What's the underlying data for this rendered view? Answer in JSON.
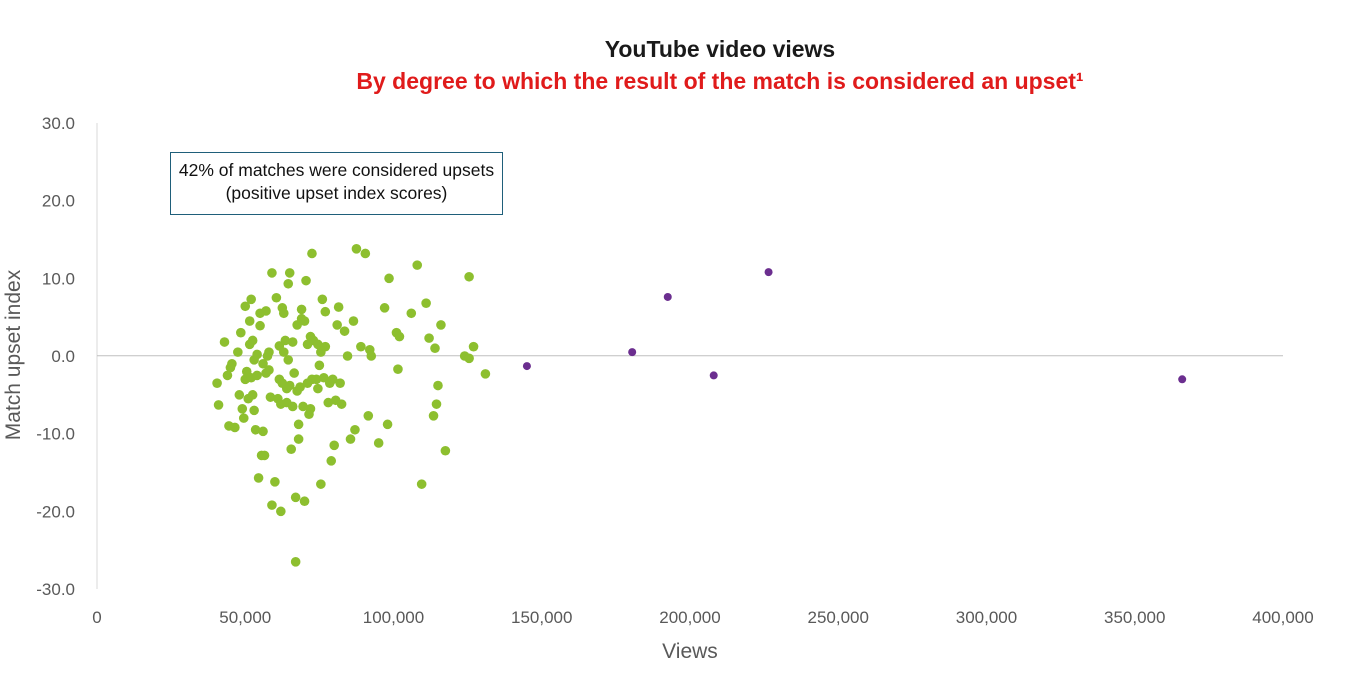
{
  "chart_data": {
    "type": "scatter",
    "title": "YouTube video views",
    "subtitle": "By degree to which the result of the match is considered an upset¹",
    "xlabel": "Views",
    "ylabel": "Match upset index",
    "xlim": [
      0,
      400000
    ],
    "ylim": [
      -30,
      30
    ],
    "x_ticks": [
      "0",
      "50,000",
      "100,000",
      "150,000",
      "200,000",
      "250,000",
      "300,000",
      "350,000",
      "400,000"
    ],
    "y_ticks": [
      "30.0",
      "20.0",
      "10.0",
      "0.0",
      "-10.0",
      "-20.0",
      "-30.0"
    ],
    "grid": false,
    "zero_line": true,
    "annotation": "42% of matches were considered upsets (positive upset index scores)",
    "colors": {
      "main": "#8dbf2f",
      "outlier": "#6b2e8f",
      "subtitle": "#e01b1b",
      "title": "#1a1a1a",
      "axis": "#595959"
    },
    "series": [
      {
        "color": "#8dbf2f",
        "points": [
          [
            40500,
            -3.5
          ],
          [
            41000,
            -6.3
          ],
          [
            43000,
            1.8
          ],
          [
            44000,
            -2.5
          ],
          [
            44500,
            -9
          ],
          [
            45000,
            -1.5
          ],
          [
            45500,
            -1
          ],
          [
            46500,
            -9.2
          ],
          [
            47500,
            0.5
          ],
          [
            48000,
            -5
          ],
          [
            48500,
            3
          ],
          [
            49000,
            -6.8
          ],
          [
            49500,
            -8
          ],
          [
            50000,
            6.4
          ],
          [
            50000,
            -3
          ],
          [
            50500,
            -2
          ],
          [
            51000,
            -5.5
          ],
          [
            51500,
            4.5
          ],
          [
            51500,
            1.5
          ],
          [
            52000,
            7.3
          ],
          [
            52000,
            -2.8
          ],
          [
            52500,
            -5
          ],
          [
            52500,
            2
          ],
          [
            53000,
            -7
          ],
          [
            53000,
            -0.5
          ],
          [
            53500,
            -9.5
          ],
          [
            54000,
            0.2
          ],
          [
            54000,
            -2.5
          ],
          [
            54500,
            -15.7
          ],
          [
            55000,
            5.5
          ],
          [
            55000,
            3.9
          ],
          [
            55500,
            -12.8
          ],
          [
            56000,
            -9.7
          ],
          [
            56000,
            -1
          ],
          [
            56500,
            -12.8
          ],
          [
            57000,
            5.8
          ],
          [
            57000,
            -2.2
          ],
          [
            57500,
            0
          ],
          [
            58000,
            0.5
          ],
          [
            58000,
            -1.8
          ],
          [
            58500,
            -5.3
          ],
          [
            59000,
            10.7
          ],
          [
            59000,
            -19.2
          ],
          [
            60000,
            -16.2
          ],
          [
            60500,
            7.5
          ],
          [
            61000,
            -5.5
          ],
          [
            61500,
            -3
          ],
          [
            61500,
            1.3
          ],
          [
            62000,
            -6.2
          ],
          [
            62000,
            -20
          ],
          [
            62500,
            6.2
          ],
          [
            62500,
            -3.5
          ],
          [
            63000,
            0.5
          ],
          [
            63000,
            5.5
          ],
          [
            63500,
            2
          ],
          [
            64000,
            -6
          ],
          [
            64000,
            -4.2
          ],
          [
            64500,
            9.3
          ],
          [
            64500,
            -0.5
          ],
          [
            65000,
            10.7
          ],
          [
            65000,
            -3.8
          ],
          [
            65500,
            -12
          ],
          [
            66000,
            1.8
          ],
          [
            66000,
            -6.5
          ],
          [
            66500,
            -2.2
          ],
          [
            67000,
            -18.2
          ],
          [
            67000,
            -26.5
          ],
          [
            67500,
            4
          ],
          [
            67500,
            -4.5
          ],
          [
            68000,
            -10.7
          ],
          [
            68000,
            -8.8
          ],
          [
            68500,
            -4
          ],
          [
            69000,
            4.8
          ],
          [
            69000,
            6
          ],
          [
            69500,
            -6.5
          ],
          [
            70000,
            -18.7
          ],
          [
            70000,
            4.5
          ],
          [
            70500,
            9.7
          ],
          [
            71000,
            1.5
          ],
          [
            71000,
            -3.5
          ],
          [
            71500,
            -7.5
          ],
          [
            72000,
            -6.8
          ],
          [
            72000,
            2.5
          ],
          [
            72500,
            13.2
          ],
          [
            72500,
            -3
          ],
          [
            73000,
            2
          ],
          [
            74000,
            -3
          ],
          [
            74500,
            -4.2
          ],
          [
            74500,
            1.5
          ],
          [
            75000,
            -1.2
          ],
          [
            75500,
            -16.5
          ],
          [
            75500,
            0.5
          ],
          [
            76000,
            7.3
          ],
          [
            76500,
            -2.8
          ],
          [
            77000,
            5.7
          ],
          [
            77000,
            1.2
          ],
          [
            78000,
            -6
          ],
          [
            78500,
            -3.5
          ],
          [
            79000,
            -13.5
          ],
          [
            79500,
            -3
          ],
          [
            80000,
            -11.5
          ],
          [
            80500,
            -5.7
          ],
          [
            81000,
            4
          ],
          [
            81500,
            6.3
          ],
          [
            82000,
            -3.5
          ],
          [
            82500,
            -6.2
          ],
          [
            83500,
            3.2
          ],
          [
            84500,
            0
          ],
          [
            85500,
            -10.7
          ],
          [
            86500,
            4.5
          ],
          [
            87000,
            -9.5
          ],
          [
            87500,
            13.8
          ],
          [
            89000,
            1.2
          ],
          [
            90500,
            13.2
          ],
          [
            91500,
            -7.7
          ],
          [
            92000,
            0.8
          ],
          [
            92500,
            0
          ],
          [
            95000,
            -11.2
          ],
          [
            97000,
            6.2
          ],
          [
            98000,
            -8.8
          ],
          [
            98500,
            10
          ],
          [
            101000,
            3
          ],
          [
            101500,
            -1.7
          ],
          [
            102000,
            2.5
          ],
          [
            106000,
            5.5
          ],
          [
            108000,
            11.7
          ],
          [
            109500,
            -16.5
          ],
          [
            111000,
            6.8
          ],
          [
            112000,
            2.3
          ],
          [
            113500,
            -7.7
          ],
          [
            114000,
            1
          ],
          [
            114500,
            -6.2
          ],
          [
            115000,
            -3.8
          ],
          [
            116000,
            4
          ],
          [
            117500,
            -12.2
          ],
          [
            124000,
            0
          ],
          [
            125500,
            10.2
          ],
          [
            125500,
            -0.3
          ],
          [
            127000,
            1.2
          ],
          [
            131000,
            -2.3
          ]
        ]
      },
      {
        "color": "#6b2e8f",
        "points": [
          [
            145000,
            -1.3
          ],
          [
            180500,
            0.5
          ],
          [
            192500,
            7.6
          ],
          [
            208000,
            -2.5
          ],
          [
            226500,
            10.8
          ],
          [
            366000,
            -3
          ]
        ]
      }
    ]
  }
}
